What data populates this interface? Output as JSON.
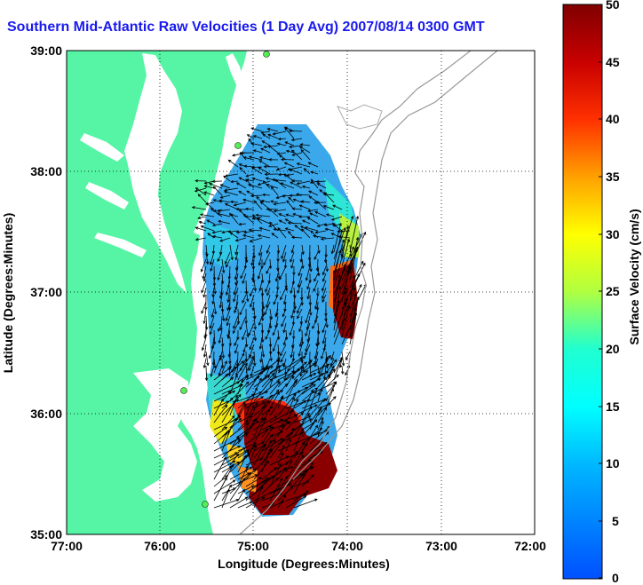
{
  "title": "Southern Mid-Atlantic Raw Velocities (1 Day Avg) 2007/08/14 0300 GMT",
  "xaxis": {
    "label": "Longitude (Degrees:Minutes)",
    "ticks": [
      "77:00",
      "76:00",
      "75:00",
      "74:00",
      "73:00",
      "72:00"
    ]
  },
  "yaxis": {
    "label": "Latitude (Degrees:Minutes)",
    "ticks": [
      "39:00",
      "38:00",
      "37:00",
      "36:00",
      "35:00"
    ]
  },
  "colorbar": {
    "label": "Surface Velocity (cm/s)",
    "ticks": [
      "50",
      "45",
      "40",
      "35",
      "30",
      "25",
      "20",
      "15",
      "10",
      "5",
      "0"
    ]
  },
  "colors": {
    "land": "#55f5a5",
    "title": "#1a1aee",
    "field_low": "#3aa0ee",
    "field_high": "#8a0000"
  }
}
